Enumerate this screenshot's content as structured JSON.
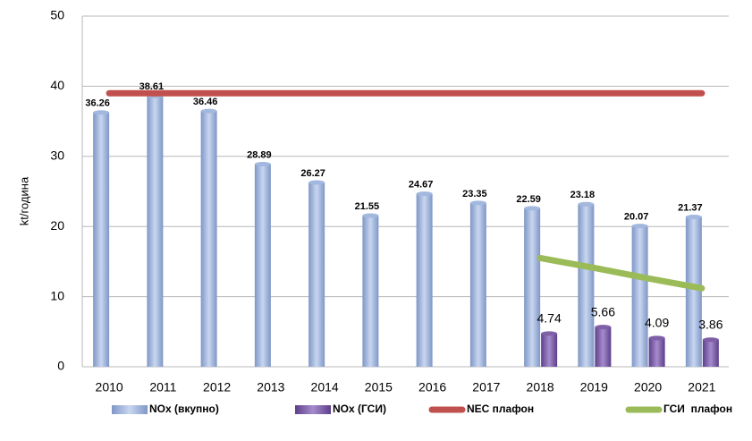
{
  "chart_data": {
    "type": "bar",
    "y_label": "kt/година",
    "categories": [
      "2010",
      "2011",
      "2012",
      "2013",
      "2014",
      "2015",
      "2016",
      "2017",
      "2018",
      "2019",
      "2020",
      "2021"
    ],
    "series": [
      {
        "name": "NOx (вкупно)",
        "type": "bar",
        "color": "#a3b8de",
        "values": [
          36.26,
          38.61,
          36.46,
          28.89,
          26.27,
          21.55,
          24.67,
          23.35,
          22.59,
          23.18,
          20.07,
          21.37
        ]
      },
      {
        "name": "NOx (ГСИ)",
        "type": "bar",
        "color": "#7f5fa8",
        "values": [
          null,
          null,
          null,
          null,
          null,
          null,
          null,
          null,
          4.74,
          5.66,
          4.09,
          3.86
        ]
      },
      {
        "name": "NEC плафон",
        "type": "line",
        "color": "#c0504d",
        "values": [
          39,
          39,
          39,
          39,
          39,
          39,
          39,
          39,
          39,
          39,
          39,
          39
        ]
      },
      {
        "name": "ГСИ  плафон",
        "type": "line",
        "color": "#9bbb59",
        "values": [
          null,
          null,
          null,
          null,
          null,
          null,
          null,
          null,
          15.5,
          14.1,
          12.6,
          11.2
        ]
      }
    ],
    "ylim": [
      0,
      50
    ],
    "yticks": [
      0,
      10,
      20,
      30,
      40,
      50
    ],
    "grid": true,
    "legend": "bottom"
  }
}
